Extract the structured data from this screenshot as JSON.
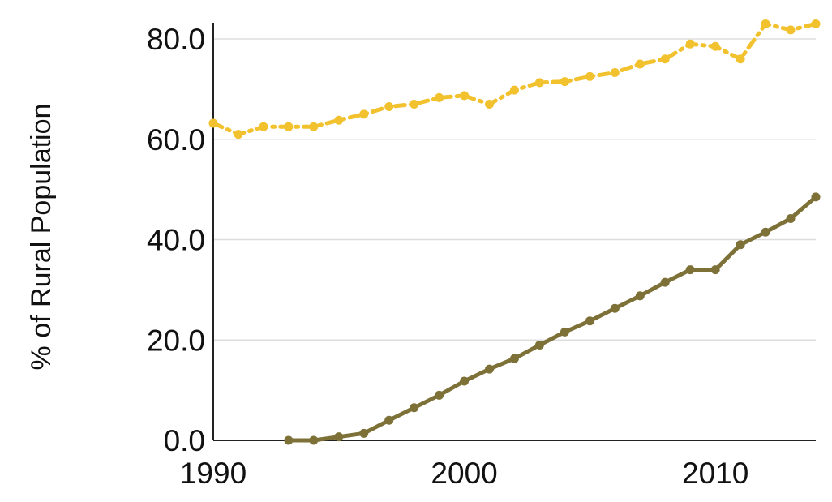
{
  "chart_data": {
    "type": "line",
    "title": "",
    "xlabel": "",
    "ylabel": "% of Rural Population",
    "xlim": [
      1990,
      2014
    ],
    "ylim": [
      0,
      80
    ],
    "x_ticks": [
      1990,
      2000,
      2010
    ],
    "x_tick_labels": [
      "1990",
      "2000",
      "2010"
    ],
    "y_ticks": [
      0,
      20,
      40,
      60,
      80
    ],
    "y_tick_labels": [
      "0.0",
      "20.0",
      "40.0",
      "60.0",
      "80.0"
    ],
    "grid": "horizontal",
    "legend": "none",
    "series": [
      {
        "color": "#f2c12e",
        "line_style": "dash-dot",
        "x": [
          1990,
          1991,
          1992,
          1993,
          1994,
          1995,
          1996,
          1997,
          1998,
          1999,
          2000,
          2001,
          2002,
          2003,
          2004,
          2005,
          2006,
          2007,
          2008,
          2009,
          2010,
          2011,
          2012,
          2013,
          2014
        ],
        "y": [
          63.2,
          61.0,
          62.5,
          62.5,
          62.5,
          63.8,
          65.0,
          66.5,
          67.0,
          68.3,
          68.7,
          67.0,
          69.8,
          71.3,
          71.5,
          72.5,
          73.3,
          75.0,
          76.0,
          79.0,
          78.5,
          76.0,
          83.0,
          81.8,
          83.0
        ]
      },
      {
        "color": "#7d7138",
        "line_style": "solid",
        "x": [
          1993,
          1994,
          1995,
          1996,
          1997,
          1998,
          1999,
          2000,
          2001,
          2002,
          2003,
          2004,
          2005,
          2006,
          2007,
          2008,
          2009,
          2010,
          2011,
          2012,
          2013,
          2014
        ],
        "y": [
          0.0,
          0.0,
          0.7,
          1.4,
          4.0,
          6.5,
          9.0,
          11.8,
          14.2,
          16.3,
          19.0,
          21.6,
          23.8,
          26.3,
          28.8,
          31.5,
          34.0,
          34.0,
          39.0,
          41.5,
          44.2,
          48.5
        ]
      }
    ]
  }
}
